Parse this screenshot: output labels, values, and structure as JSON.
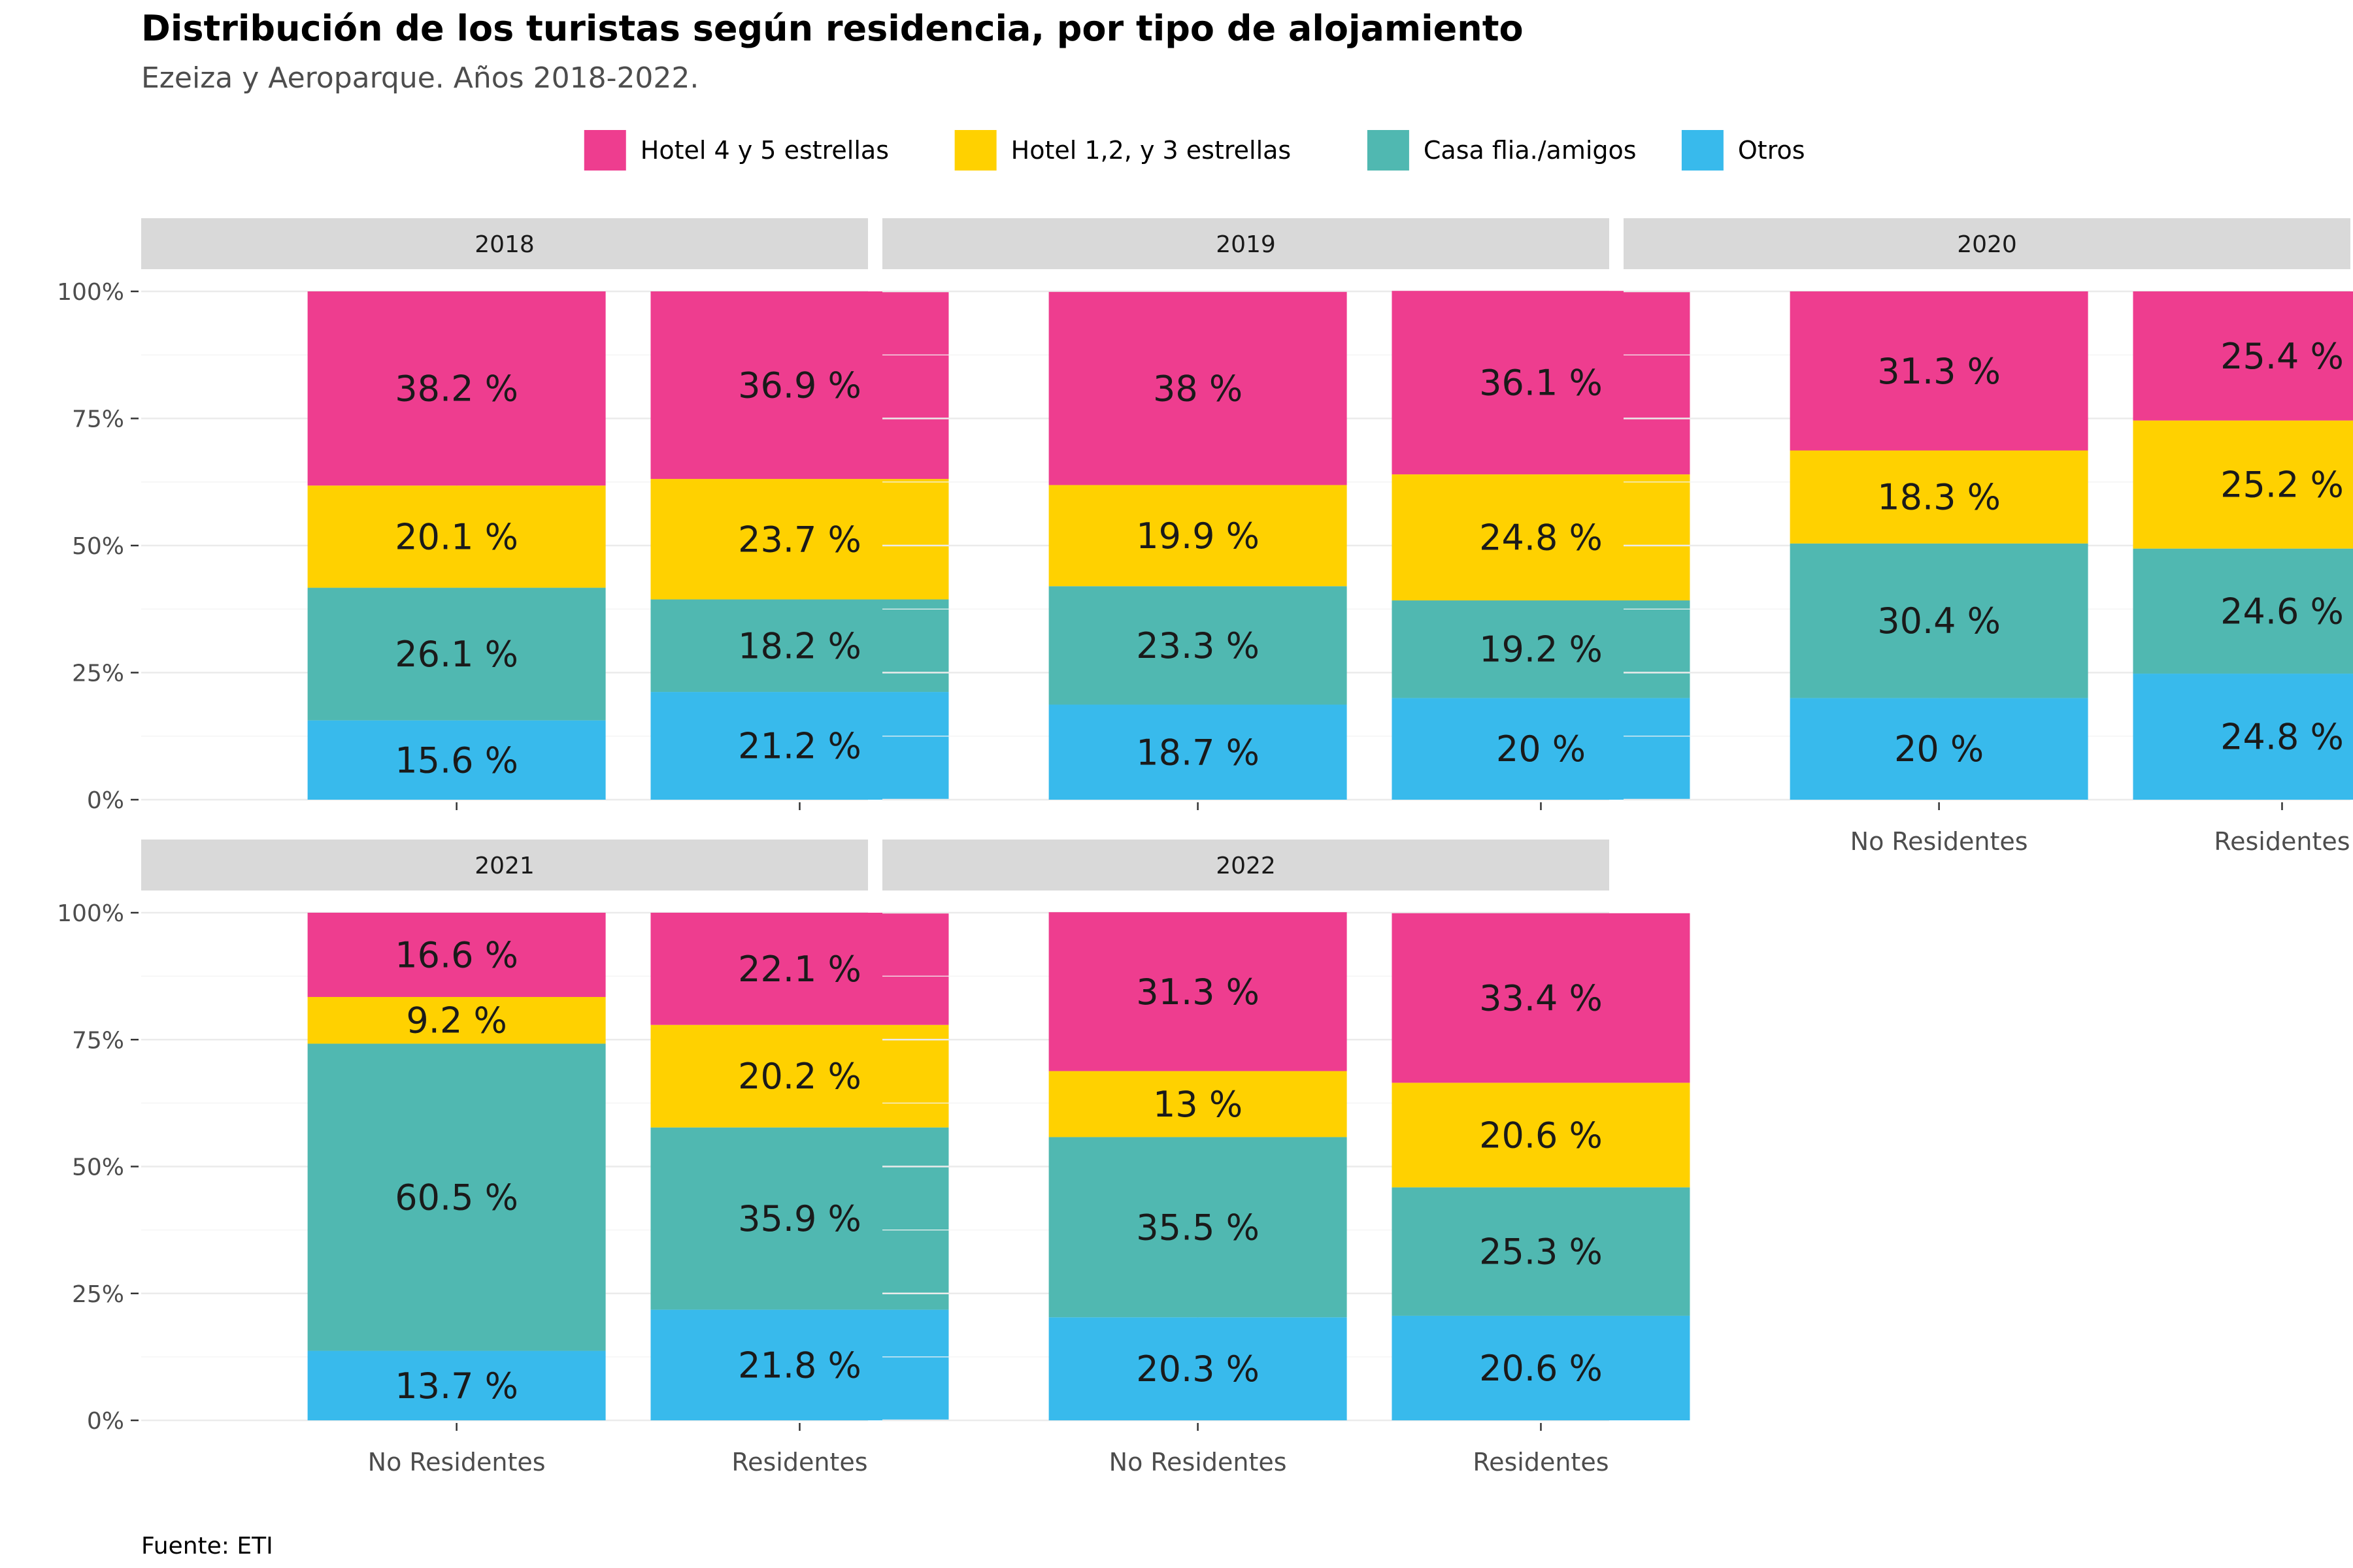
{
  "chart_data": {
    "type": "bar",
    "stacked": true,
    "percent_scale": true,
    "title": "Distribución de los turistas según residencia, por tipo de alojamiento",
    "subtitle": "Ezeiza y Aeroparque. Años 2018-2022.",
    "caption": "Fuente: ETI",
    "legend_position": "top",
    "categories": [
      "No Residentes",
      "Residentes"
    ],
    "ylim": [
      0,
      100
    ],
    "yticks": [
      "0%",
      "25%",
      "50%",
      "75%",
      "100%"
    ],
    "grid": true,
    "series_colors": {
      "Hotel 4 y 5 estrellas": "#EE3D8F",
      "Hotel 1,2, y 3 estrellas": "#FFD100",
      "Casa flia./amigos": "#50B8B1",
      "Otros": "#38BAEC"
    },
    "legend": [
      "Hotel 4 y 5 estrellas",
      "Hotel 1,2, y 3 estrellas",
      "Casa flia./amigos",
      "Otros"
    ],
    "panels": [
      {
        "year": "2018",
        "series": [
          {
            "name": "Otros",
            "values": [
              15.6,
              21.2
            ],
            "labels": [
              "15.6 %",
              "21.2 %"
            ]
          },
          {
            "name": "Casa flia./amigos",
            "values": [
              26.1,
              18.2
            ],
            "labels": [
              "26.1 %",
              "18.2 %"
            ]
          },
          {
            "name": "Hotel 1,2, y 3 estrellas",
            "values": [
              20.1,
              23.7
            ],
            "labels": [
              "20.1 %",
              "23.7 %"
            ]
          },
          {
            "name": "Hotel 4 y 5 estrellas",
            "values": [
              38.2,
              36.9
            ],
            "labels": [
              "38.2 %",
              "36.9 %"
            ]
          }
        ]
      },
      {
        "year": "2019",
        "series": [
          {
            "name": "Otros",
            "values": [
              18.7,
              20
            ],
            "labels": [
              "18.7 %",
              "20 %"
            ]
          },
          {
            "name": "Casa flia./amigos",
            "values": [
              23.3,
              19.2
            ],
            "labels": [
              "23.3 %",
              "19.2 %"
            ]
          },
          {
            "name": "Hotel 1,2, y 3 estrellas",
            "values": [
              19.9,
              24.8
            ],
            "labels": [
              "19.9 %",
              "24.8 %"
            ]
          },
          {
            "name": "Hotel 4 y 5 estrellas",
            "values": [
              38,
              36.1
            ],
            "labels": [
              "38 %",
              "36.1 %"
            ]
          }
        ]
      },
      {
        "year": "2020",
        "series": [
          {
            "name": "Otros",
            "values": [
              20,
              24.8
            ],
            "labels": [
              "20 %",
              "24.8 %"
            ]
          },
          {
            "name": "Casa flia./amigos",
            "values": [
              30.4,
              24.6
            ],
            "labels": [
              "30.4 %",
              "24.6 %"
            ]
          },
          {
            "name": "Hotel 1,2, y 3 estrellas",
            "values": [
              18.3,
              25.2
            ],
            "labels": [
              "18.3 %",
              "25.2 %"
            ]
          },
          {
            "name": "Hotel 4 y 5 estrellas",
            "values": [
              31.3,
              25.4
            ],
            "labels": [
              "31.3 %",
              "25.4 %"
            ]
          }
        ]
      },
      {
        "year": "2021",
        "series": [
          {
            "name": "Otros",
            "values": [
              13.7,
              21.8
            ],
            "labels": [
              "13.7 %",
              "21.8 %"
            ]
          },
          {
            "name": "Casa flia./amigos",
            "values": [
              60.5,
              35.9
            ],
            "labels": [
              "60.5 %",
              "35.9 %"
            ]
          },
          {
            "name": "Hotel 1,2, y 3 estrellas",
            "values": [
              9.2,
              20.2
            ],
            "labels": [
              "9.2 %",
              "20.2 %"
            ]
          },
          {
            "name": "Hotel 4 y 5 estrellas",
            "values": [
              16.6,
              22.1
            ],
            "labels": [
              "16.6 %",
              "22.1 %"
            ]
          }
        ]
      },
      {
        "year": "2022",
        "series": [
          {
            "name": "Otros",
            "values": [
              20.3,
              20.6
            ],
            "labels": [
              "20.3 %",
              "20.6 %"
            ]
          },
          {
            "name": "Casa flia./amigos",
            "values": [
              35.5,
              25.3
            ],
            "labels": [
              "35.5 %",
              "25.3 %"
            ]
          },
          {
            "name": "Hotel 1,2, y 3 estrellas",
            "values": [
              13,
              20.6
            ],
            "labels": [
              "13 %",
              "20.6 %"
            ]
          },
          {
            "name": "Hotel 4 y 5 estrellas",
            "values": [
              31.3,
              33.4
            ],
            "labels": [
              "31.3 %",
              "33.4 %"
            ]
          }
        ]
      }
    ]
  }
}
